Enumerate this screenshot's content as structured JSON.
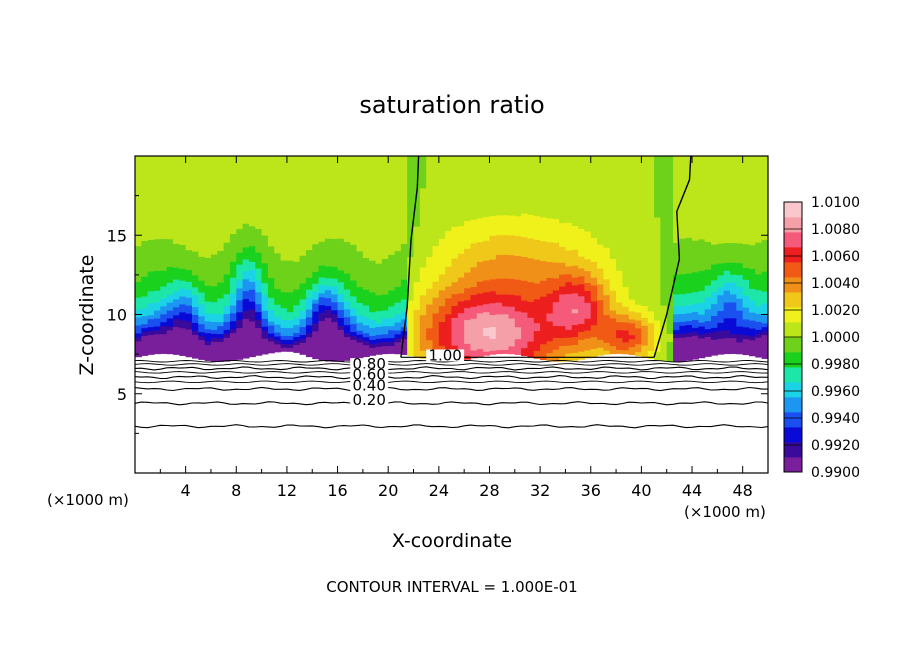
{
  "chart_data": {
    "type": "heatmap",
    "title": "saturation ratio",
    "xlabel": "X-coordinate",
    "ylabel": "Z-coordinate",
    "x_unit_left": "(×1000 m)",
    "x_unit_right": "(×1000 m)",
    "footer": "CONTOUR INTERVAL = 1.000E-01",
    "xlim": [
      0,
      50
    ],
    "ylim": [
      0,
      20
    ],
    "x_ticks": [
      4,
      8,
      12,
      16,
      20,
      24,
      28,
      32,
      36,
      40,
      44,
      48
    ],
    "y_ticks": [
      5,
      10,
      15
    ],
    "colorbar": {
      "min": 0.99,
      "max": 1.01,
      "labels": [
        "1.0100",
        "1.0080",
        "1.0060",
        "1.0040",
        "1.0020",
        "1.0000",
        "0.9980",
        "0.9960",
        "0.9940",
        "0.9920",
        "0.9900"
      ],
      "colors": [
        "#7a1f9c",
        "#3a0a9a",
        "#0a0ad6",
        "#1a50f0",
        "#1c96f0",
        "#1cd2e6",
        "#1ce6a8",
        "#1ad21e",
        "#6ed21a",
        "#bce61a",
        "#f0f01a",
        "#f0c81a",
        "#f09018",
        "#f05a14",
        "#ec1e1e",
        "#f55a7a",
        "#f5a0a8",
        "#fac8cc"
      ]
    },
    "cloud_base_z": 7.3,
    "contour_labels": [
      "0.80",
      "0.60",
      "0.40",
      "0.20",
      "1.00"
    ],
    "contour_lines_below_base": [
      {
        "level": 0.2,
        "z": 4.4
      },
      {
        "level": 0.4,
        "z": 5.3
      },
      {
        "level": 0.6,
        "z": 6.05
      },
      {
        "level": 0.8,
        "z": 6.6
      },
      {
        "level": 0.1,
        "z": 2.95
      }
    ],
    "unity_contours": [
      {
        "z": [
          7.3,
          10.5,
          14.7,
          18.0,
          20
        ],
        "x": [
          21.0,
          21.5,
          21.8,
          22.3,
          22.4
        ]
      },
      {
        "z": [
          7.3,
          10.0,
          13.5,
          16.5,
          18.5,
          20
        ],
        "x": [
          41.0,
          42.0,
          43.0,
          42.8,
          43.8,
          43.9
        ]
      }
    ]
  }
}
